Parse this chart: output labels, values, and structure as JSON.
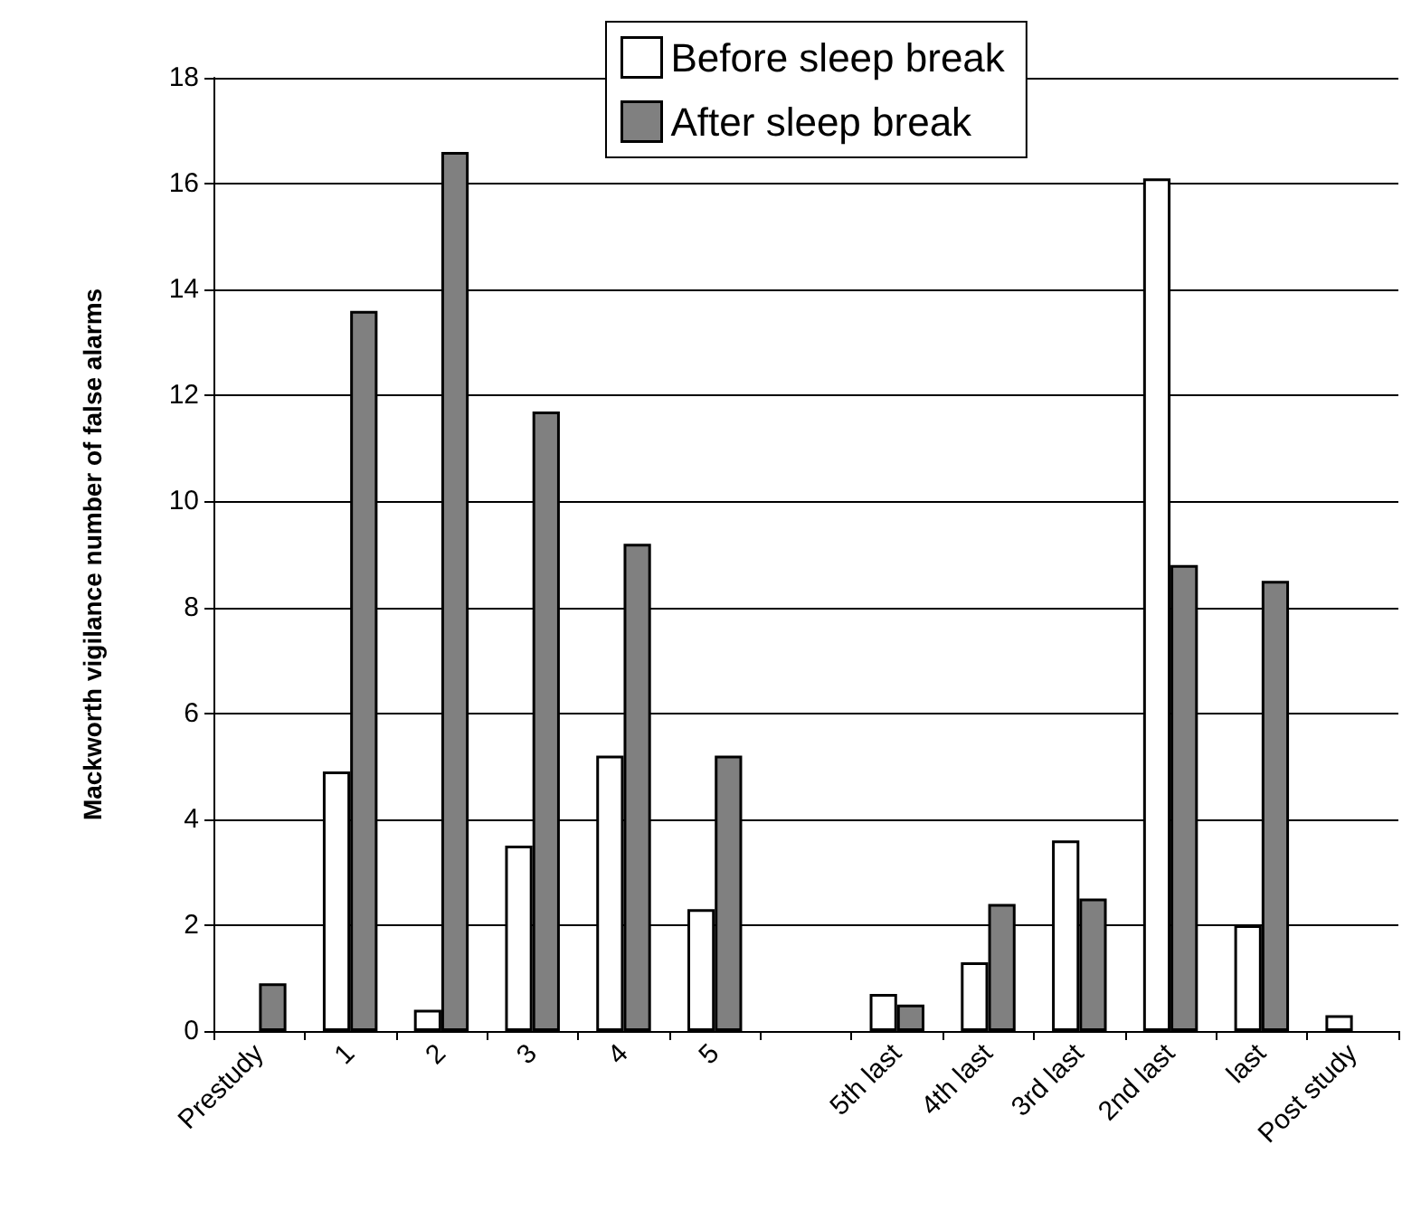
{
  "chart_data": {
    "type": "bar",
    "ylabel": "Mackworth vigilance number of false alarms",
    "categories": [
      "Prestudy",
      "1",
      "2",
      "3",
      "4",
      "5",
      null,
      "5th last",
      "4th last",
      "3rd last",
      "2nd last",
      "last",
      "Post study"
    ],
    "series": [
      {
        "name": "Before sleep break",
        "color": "#ffffff",
        "values": [
          null,
          4.9,
          0.4,
          3.5,
          5.2,
          2.3,
          null,
          0.7,
          1.3,
          3.6,
          16.1,
          2.0,
          0.3
        ]
      },
      {
        "name": "After sleep break",
        "color": "#808080",
        "values": [
          0.9,
          13.6,
          16.6,
          11.7,
          9.2,
          5.2,
          null,
          0.5,
          2.4,
          2.5,
          8.8,
          8.5,
          null
        ]
      }
    ],
    "ylim": [
      0,
      18
    ],
    "yticks": [
      0,
      2,
      4,
      6,
      8,
      10,
      12,
      14,
      16,
      18
    ],
    "grid": "y",
    "legend": "top"
  }
}
